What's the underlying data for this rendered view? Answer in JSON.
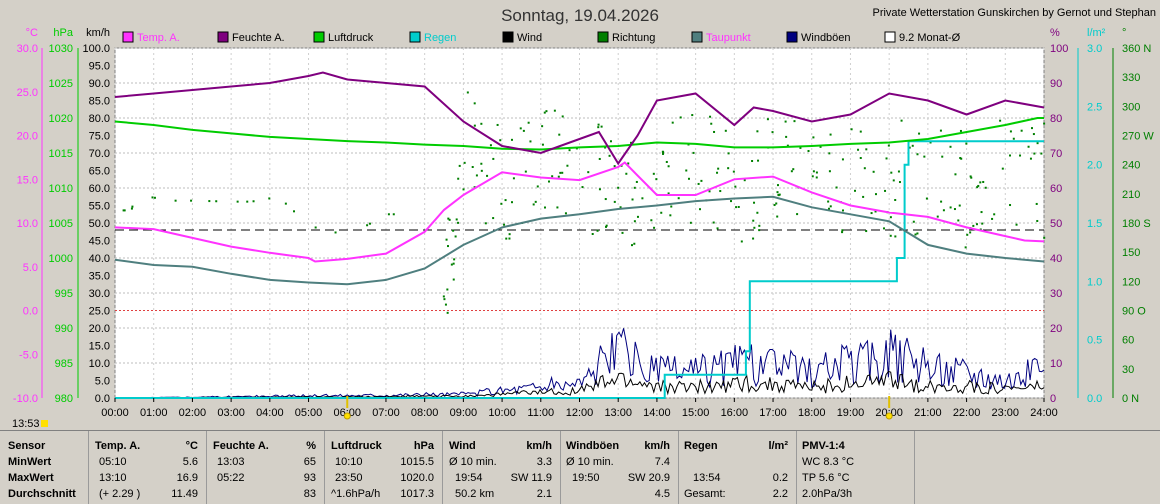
{
  "header": {
    "title": "Sonntag, 19.04.2026",
    "station": "Private Wetterstation Gunskirchen by Gernot und Stephan",
    "time_marker": "13:53"
  },
  "colors": {
    "temp": "#ff33ff",
    "humidity": "#7f007f",
    "pressure": "#00cc00",
    "rain": "#00cccc",
    "wind": "#000000",
    "direction": "#007f00",
    "dewpoint": "#4f7f7f",
    "gusts": "#00007f",
    "plot_bg": "#ffffff",
    "panel_bg": "#d4d0c8"
  },
  "chart_data": {
    "type": "line",
    "title": "Sonntag, 19.04.2026",
    "legend": [
      {
        "label": "Temp. A.",
        "color": "#ff33ff"
      },
      {
        "label": "Feuchte A.",
        "color": "#7f007f"
      },
      {
        "label": "Luftdruck",
        "color": "#00cc00"
      },
      {
        "label": "Regen",
        "color": "#00cccc"
      },
      {
        "label": "Wind",
        "color": "#000000"
      },
      {
        "label": "Richtung",
        "color": "#007f00"
      },
      {
        "label": "Taupunkt",
        "color": "#4f7f7f"
      },
      {
        "label": "Windböen",
        "color": "#00007f"
      },
      {
        "label": "9.2 Monat-Ø",
        "color": "#000000"
      }
    ],
    "x_ticks": [
      "00:00",
      "01:00",
      "02:00",
      "03:00",
      "04:00",
      "05:00",
      "06:00",
      "07:00",
      "08:00",
      "09:00",
      "10:00",
      "11:00",
      "12:00",
      "13:00",
      "14:00",
      "15:00",
      "16:00",
      "17:00",
      "18:00",
      "19:00",
      "20:00",
      "21:00",
      "22:00",
      "23:00",
      "24:00"
    ],
    "xlim": [
      0,
      24
    ],
    "axes": [
      {
        "unit": "°C",
        "ylim": [
          -10,
          30
        ],
        "ticks": [
          "30.0",
          "25.0",
          "20.0",
          "15.0",
          "10.0",
          "5.0",
          "0.0",
          "-5.0",
          "-10.0"
        ],
        "color": "#ff33ff"
      },
      {
        "unit": "hPa",
        "ylim": [
          980,
          1030
        ],
        "ticks": [
          "1030",
          "1025",
          "1020",
          "1015",
          "1010",
          "1005",
          "1000",
          "995",
          "990",
          "985",
          "980"
        ],
        "color": "#00cc00"
      },
      {
        "unit": "km/h",
        "ylim": [
          0,
          100
        ],
        "ticks": [
          "100.0",
          "95.0",
          "90.0",
          "85.0",
          "80.0",
          "75.0",
          "70.0",
          "65.0",
          "60.0",
          "55.0",
          "50.0",
          "45.0",
          "40.0",
          "35.0",
          "30.0",
          "25.0",
          "20.0",
          "15.0",
          "10.0",
          "5.0",
          "0.0"
        ],
        "color": "#000000"
      },
      {
        "unit": "%",
        "ylim": [
          0,
          100
        ],
        "ticks": [
          "100",
          "90",
          "80",
          "70",
          "60",
          "50",
          "40",
          "30",
          "20",
          "10",
          "0"
        ],
        "color": "#7f007f"
      },
      {
        "unit": "l/m²",
        "ylim": [
          0,
          3
        ],
        "ticks": [
          "3.0",
          "2.5",
          "2.0",
          "1.5",
          "1.0",
          "0.5",
          "0.0"
        ],
        "color": "#00cccc"
      },
      {
        "unit": "°",
        "ylim": [
          0,
          360
        ],
        "ticks": [
          "360 N",
          "330",
          "300",
          "270 W",
          "240",
          "210",
          "180 S",
          "150",
          "120",
          "90 O",
          "60",
          "30",
          "0 N"
        ],
        "color": "#007f00"
      }
    ],
    "reference_lines": {
      "temp_zero": 0.0,
      "monthly_avg_temp": 9.2
    },
    "series": [
      {
        "name": "Temp. A.",
        "axis": "°C",
        "x": [
          0,
          1,
          2,
          3,
          4,
          5,
          5.17,
          6,
          7,
          8,
          8.5,
          9,
          10,
          11,
          12,
          13,
          13.17,
          14,
          15,
          16,
          17,
          18,
          19,
          20,
          21,
          22,
          23,
          23.5,
          24
        ],
        "values": [
          9.5,
          9.3,
          8.3,
          7.3,
          6.6,
          6.0,
          5.6,
          5.9,
          6.5,
          9.0,
          11.5,
          13.2,
          15.8,
          15.2,
          14.9,
          16.4,
          16.9,
          13.2,
          13.2,
          15.0,
          15.3,
          13.5,
          12.0,
          11.2,
          10.7,
          9.5,
          8.5,
          8.0,
          7.9
        ]
      },
      {
        "name": "Feuchte A.",
        "axis": "%",
        "x": [
          0,
          1,
          2,
          3,
          4,
          5,
          5.37,
          6,
          7,
          8,
          9,
          10,
          11,
          12,
          12.5,
          13,
          13.5,
          14,
          15,
          16,
          16.5,
          17,
          18,
          19,
          20,
          21,
          22,
          23,
          24
        ],
        "values": [
          86,
          87,
          88,
          89,
          90,
          92,
          93,
          91,
          90,
          89,
          79,
          72,
          70,
          74,
          76,
          67,
          75,
          85,
          87,
          78,
          83,
          82,
          79,
          81,
          87,
          85,
          81,
          85,
          83
        ]
      },
      {
        "name": "Luftdruck",
        "axis": "hPa",
        "x": [
          0,
          1,
          2,
          3,
          4,
          5,
          6,
          7,
          8,
          9,
          10,
          11,
          12,
          13,
          14,
          15,
          16,
          17,
          18,
          19,
          20,
          21,
          22,
          23,
          23.83,
          24
        ],
        "values": [
          1019.5,
          1019.0,
          1018.3,
          1017.8,
          1017.3,
          1017.0,
          1016.7,
          1016.5,
          1016.2,
          1016.0,
          1015.6,
          1015.5,
          1015.8,
          1016.0,
          1016.5,
          1016.3,
          1015.8,
          1015.8,
          1016.0,
          1016.3,
          1016.5,
          1017.0,
          1018.0,
          1019.0,
          1020.0,
          1020.0
        ]
      },
      {
        "name": "Taupunkt",
        "axis": "°C",
        "x": [
          0,
          1,
          2,
          3,
          4,
          5,
          6,
          7,
          8,
          9,
          10,
          11,
          12,
          13,
          14,
          15,
          16,
          17,
          18,
          19,
          20,
          21,
          22,
          23,
          24
        ],
        "values": [
          5.8,
          5.2,
          5.0,
          4.2,
          3.5,
          3.2,
          3.0,
          3.5,
          4.8,
          7.5,
          9.5,
          10.5,
          11.0,
          11.6,
          12.0,
          12.5,
          12.8,
          13.0,
          11.8,
          11.0,
          10.2,
          7.5,
          6.5,
          6.0,
          5.6
        ]
      },
      {
        "name": "Regen",
        "axis": "l/m²",
        "x": [
          0,
          13.9,
          14.2,
          16,
          16.3,
          16.4,
          19.8,
          20.2,
          20.4,
          20.5,
          24
        ],
        "values": [
          0,
          0,
          0.2,
          0.2,
          0.4,
          1.0,
          1.0,
          1.2,
          2.0,
          2.2,
          2.2
        ]
      },
      {
        "name": "Wind",
        "axis": "km/h",
        "x": [
          0,
          9,
          10,
          11,
          12,
          13,
          13.5,
          14,
          15,
          16,
          17,
          18,
          19,
          20,
          21,
          22,
          23,
          24
        ],
        "values": [
          0,
          0.5,
          1.0,
          1.5,
          2.0,
          5.0,
          4.0,
          3.0,
          3.0,
          4.0,
          3.5,
          3.0,
          4.0,
          4.5,
          3.0,
          3.0,
          2.5,
          3.0
        ]
      },
      {
        "name": "Windböen",
        "axis": "km/h",
        "x": [
          0,
          9,
          10,
          11,
          12,
          13,
          13.5,
          14,
          15,
          16,
          17,
          18,
          19,
          20,
          21,
          22,
          23,
          24
        ],
        "values": [
          0,
          1.0,
          2.0,
          3.0,
          4.0,
          12.0,
          9.0,
          7.0,
          7.0,
          9.0,
          8.0,
          7.0,
          9.0,
          11.0,
          8.0,
          7.0,
          5.0,
          7.0
        ]
      },
      {
        "name": "Richtung",
        "axis": "°",
        "x": [
          0,
          0.4,
          0.5,
          1.5,
          2,
          3,
          3.5,
          4.2,
          5,
          6,
          7,
          8,
          8.5,
          9,
          10,
          11,
          12,
          13,
          14,
          15,
          16,
          17,
          18,
          19,
          20,
          21,
          22,
          23,
          24
        ],
        "values": [
          194,
          194,
          210,
          204,
          204,
          203,
          203,
          208,
          178,
          168,
          190,
          190,
          100,
          260,
          220,
          250,
          235,
          210,
          225,
          240,
          220,
          230,
          235,
          220,
          225,
          230,
          215,
          235,
          225
        ]
      }
    ]
  },
  "stats": {
    "headers": {
      "sensor": "Sensor",
      "temp": "Temp. A.",
      "temp_unit": "°C",
      "hum": "Feuchte A.",
      "hum_unit": "%",
      "press": "Luftdruck",
      "press_unit": "hPa",
      "wind": "Wind",
      "wind_unit": "km/h",
      "gust": "Windböen",
      "gust_unit": "km/h",
      "rain": "Regen",
      "rain_unit": "l/m²",
      "pmv": "PMV-1:4"
    },
    "min": {
      "label": "MinWert",
      "temp_time": "05:10",
      "temp_val": "5.6",
      "hum_time": "13:03",
      "hum_val": "65",
      "press_time": "10:10",
      "press_val": "1015.5",
      "wind_label": "Ø 10 min.",
      "wind_val": "3.3",
      "gust_label": "Ø 10 min.",
      "gust_val": "7.4",
      "pmv": "WC 8.3 °C"
    },
    "max": {
      "label": "MaxWert",
      "temp_time": "13:10",
      "temp_val": "16.9",
      "hum_time": "05:22",
      "hum_val": "93",
      "press_time": "23:50",
      "press_val": "1020.0",
      "wind_time": "19:54",
      "wind_dir": "SW 11.9",
      "gust_time": "19:50",
      "gust_dir": "SW 20.9",
      "rain_time": "13:54",
      "rain_val": "0.2",
      "pmv": "TP 5.6 °C"
    },
    "avg": {
      "label": "Durchschnitt",
      "temp_trend": "(+ 2.29 )",
      "temp_val": "11.49",
      "hum_val": "83",
      "press_trend": "^1.6hPa/h",
      "press_val": "1017.3",
      "wind_dist": "50.2 km",
      "wind_val": "2.1",
      "gust_val": "4.5",
      "rain_label": "Gesamt:",
      "rain_val": "2.2",
      "pmv": "2.0hPa/3h"
    }
  }
}
